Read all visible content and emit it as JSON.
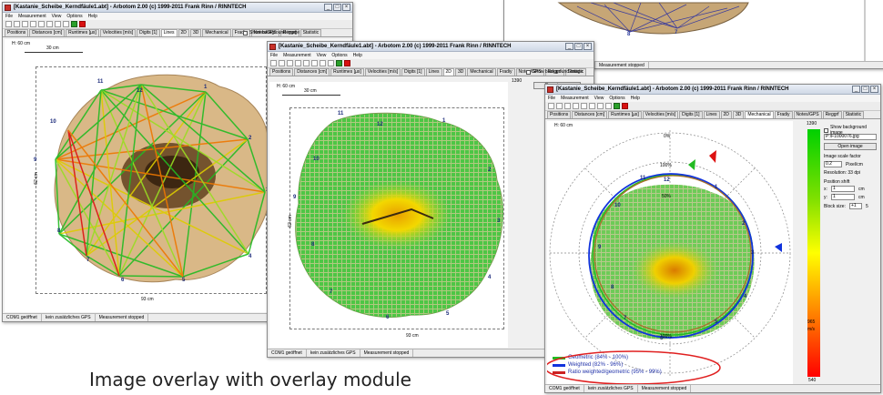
{
  "caption": "Image overlay with overlay module",
  "menu": [
    "File",
    "Measurement",
    "View",
    "Options",
    "Help"
  ],
  "tabs": [
    "Positions",
    "Distances [cm]",
    "Runtimes [µs]",
    "Velocities [m/s]",
    "Digits [1]",
    "Lines",
    "2D",
    "3D",
    "Mechanical",
    "Fradiy",
    "Notes/GPS",
    "Reggrf",
    "Statistic"
  ],
  "show_background": "Show background image",
  "status": {
    "com": "COM1 geöffnet",
    "gps": "kein zusätzliches GPS",
    "measurement": "Measurement stopped"
  },
  "win1": {
    "title": "[Kastanie_Scheibe_Kerndfäule1.abt] - Arbotom 2.00 (c) 1999-2011 Frank Rinn / RINNTECH",
    "height": "H: 60 cm",
    "scale_top": "30 cm",
    "scale_bottom": "93 cm",
    "scale_side": "62 cm",
    "nodes": [
      "1",
      "2",
      "3",
      "4",
      "5",
      "6",
      "7",
      "8",
      "9",
      "10",
      "11",
      "12"
    ]
  },
  "win2": {
    "title": "[Kastanie_Scheibe_Kerndfäule1.abt] - Arbotom 2.00 (c) 1999-2011 Frank Rinn / RINNTECH",
    "height": "H: 60 cm",
    "scale_top": "30 cm",
    "scale_bottom": "93 cm",
    "scale_side": "62 cm",
    "side_value": "1390",
    "open_image": "Open image",
    "nodes": [
      "1",
      "2",
      "3",
      "4",
      "5",
      "6",
      "7",
      "8",
      "9",
      "10",
      "11",
      "12"
    ]
  },
  "win3": {
    "title": "[Kastanie_Scheibe_Kerndfäule1.abt] - Arbotom 2.00 (c) 1999-2011 Frank Rinn / RINNTECH",
    "height": "H: 60 cm",
    "active_tab": "Mechanical",
    "colorbar": {
      "top": "1390",
      "mid": "965",
      "unit": "m/s",
      "bottom": "540"
    },
    "polar": {
      "top": "0%",
      "ring": "100%",
      "bottom": "100%",
      "inner": "50%"
    },
    "side": {
      "file": "P:\\F1000076.jpg",
      "open_image": "Open image",
      "scale_label": "Image scale factor",
      "scale_value": "0.2",
      "scale_unit": "Pixel/cm",
      "resolution": "Resolution: 33 dpi",
      "position_label": "Position shift",
      "x_label": "x:",
      "x_value": "1",
      "y_label": "y:",
      "y_value": "1",
      "cm": "cm",
      "block_label": "Block size:",
      "block_value": "+1",
      "block_unit": "5"
    },
    "legend": [
      {
        "label": "Geometric (84% - 100%)",
        "color": "#22bb22"
      },
      {
        "label": "Weighted (82% - 96%)",
        "color": "#1133dd"
      },
      {
        "label": "Ratio weighted/geometric (95% - 99%)",
        "color": "#cc2222"
      }
    ],
    "nodes": [
      "1",
      "2",
      "3",
      "4",
      "5",
      "6",
      "7",
      "8",
      "9",
      "10",
      "11",
      "12"
    ]
  },
  "top_right": {
    "status": "Measurement stopped",
    "nodes": [
      "8",
      "7"
    ]
  },
  "colors": {
    "accent_green": "#22bb22",
    "accent_blue": "#1133dd",
    "accent_red": "#cc2222"
  }
}
